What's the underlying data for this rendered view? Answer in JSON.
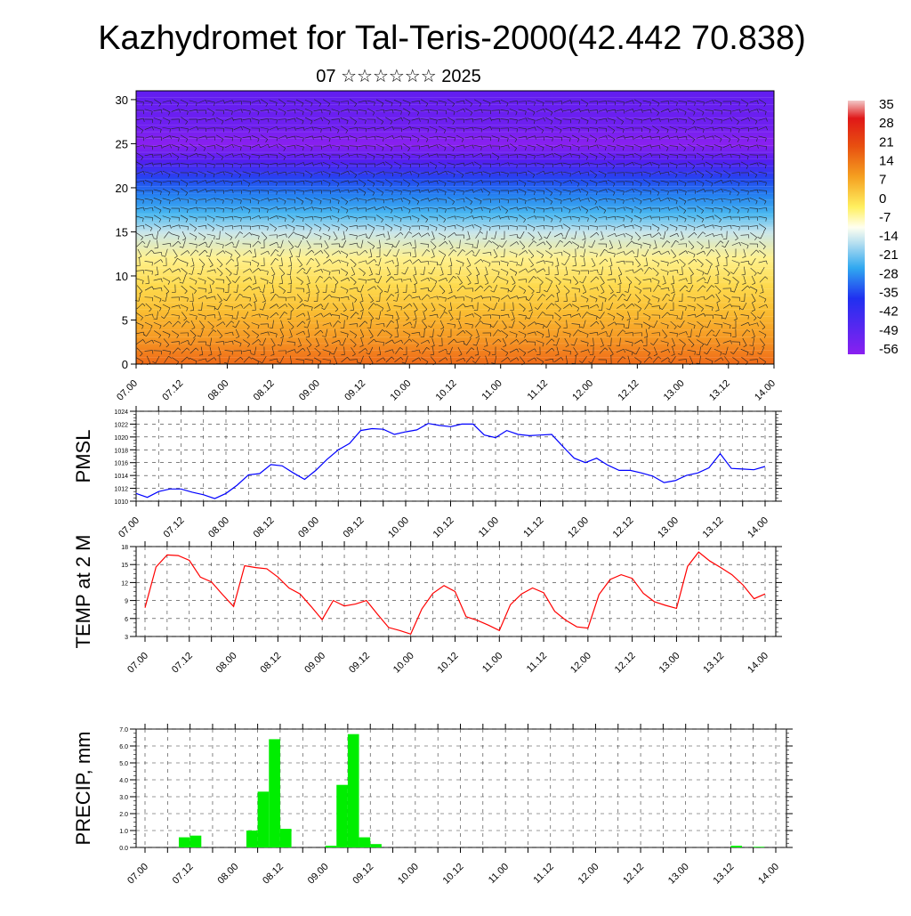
{
  "title": "Kazhydromet for Tal-Teris-2000(42.442 70.838)",
  "subtitle": "07 ☆☆☆☆☆☆ 2025",
  "x_tick_labels": [
    "07.00",
    "07.12",
    "08.00",
    "08.12",
    "09.00",
    "09.12",
    "10.00",
    "10.12",
    "11.00",
    "11.12",
    "12.00",
    "12.12",
    "13.00",
    "13.12",
    "14.00"
  ],
  "colorbar": {
    "labels": [
      "35",
      "28",
      "21",
      "14",
      "7",
      "0",
      "-7",
      "-14",
      "-21",
      "-28",
      "-35",
      "-42",
      "-49",
      "-56"
    ]
  },
  "colors": {
    "pmsl_line": "#0000ff",
    "temp_line": "#ff0000",
    "precip_bar": "#00ee00"
  },
  "chart_data": [
    {
      "type": "heatmap",
      "title": "",
      "ylabel": "",
      "y_ticks": [
        0,
        5,
        10,
        15,
        20,
        25,
        30
      ],
      "ylim": [
        0,
        31
      ],
      "x": [
        "07.00",
        "07.12",
        "08.00",
        "08.12",
        "09.00",
        "09.12",
        "10.00",
        "10.12",
        "11.00",
        "11.12",
        "12.00",
        "12.12",
        "13.00",
        "13.12",
        "14.00"
      ],
      "temperature_profile": [
        {
          "level": 0,
          "value": 18
        },
        {
          "level": 3,
          "value": 12
        },
        {
          "level": 6,
          "value": 7
        },
        {
          "level": 9,
          "value": 2
        },
        {
          "level": 12,
          "value": -4
        },
        {
          "level": 15,
          "value": -13
        },
        {
          "level": 17,
          "value": -22
        },
        {
          "level": 19,
          "value": -30
        },
        {
          "level": 21,
          "value": -38
        },
        {
          "level": 23,
          "value": -48
        },
        {
          "level": 25,
          "value": -56
        },
        {
          "level": 27,
          "value": -52
        },
        {
          "level": 31,
          "value": -50
        }
      ],
      "colorscale_range": [
        -56,
        35
      ]
    },
    {
      "type": "line",
      "ylabel": "PMSL",
      "ylim": [
        1010,
        1024
      ],
      "y_ticks": [
        1010,
        1012,
        1014,
        1016,
        1018,
        1020,
        1022,
        1024
      ],
      "x_hours": [
        0,
        3,
        6,
        9,
        12,
        15,
        18,
        21,
        24,
        27,
        30,
        33,
        36,
        39,
        42,
        45,
        48,
        51,
        54,
        57,
        60,
        63,
        66,
        69,
        72,
        75,
        78,
        81,
        84,
        87,
        90,
        93,
        96,
        99,
        102,
        105,
        108,
        111,
        114,
        117,
        120,
        123,
        126,
        129,
        132,
        135,
        138,
        141,
        144,
        147,
        150,
        153,
        156,
        159,
        162,
        165,
        168
      ],
      "series": [
        {
          "values": [
            1011.2,
            1010.6,
            1011.5,
            1011.9,
            1011.9,
            1011.4,
            1011.0,
            1010.4,
            1011.2,
            1012.5,
            1014.1,
            1014.3,
            1015.7,
            1015.5,
            1014.4,
            1013.4,
            1014.8,
            1016.5,
            1018.0,
            1019.0,
            1021.0,
            1021.3,
            1021.2,
            1020.4,
            1020.8,
            1021.1,
            1022.1,
            1021.8,
            1021.6,
            1022.0,
            1022.0,
            1020.3,
            1019.9,
            1021.0,
            1020.4,
            1020.2,
            1020.3,
            1020.4,
            1018.5,
            1016.7,
            1016.0,
            1016.7,
            1015.6,
            1014.8,
            1014.8,
            1014.4,
            1013.9,
            1012.9,
            1013.2,
            1014.0,
            1014.4,
            1015.2,
            1017.4,
            1015.1,
            1015.0,
            1014.9,
            1015.4
          ]
        }
      ]
    },
    {
      "type": "line",
      "ylabel": "TEMP at 2 M",
      "ylim": [
        3,
        18
      ],
      "y_ticks": [
        3,
        6,
        9,
        12,
        15,
        18
      ],
      "x_hours": [
        0,
        3,
        6,
        9,
        12,
        15,
        18,
        21,
        24,
        27,
        30,
        33,
        36,
        39,
        42,
        45,
        48,
        51,
        54,
        57,
        60,
        63,
        66,
        69,
        72,
        75,
        78,
        81,
        84,
        87,
        90,
        93,
        96,
        99,
        102,
        105,
        108,
        111,
        114,
        117,
        120,
        123,
        126,
        129,
        132,
        135,
        138,
        141,
        144,
        147,
        150,
        153,
        156,
        159,
        162,
        165,
        168
      ],
      "series": [
        {
          "values": [
            7.8,
            14.6,
            16.6,
            16.5,
            15.7,
            12.9,
            12.1,
            10.0,
            8.0,
            14.8,
            14.5,
            14.3,
            12.9,
            11.1,
            10.1,
            8.0,
            5.8,
            9.0,
            8.1,
            8.4,
            9.0,
            6.7,
            4.5,
            4.0,
            3.4,
            7.6,
            10.2,
            11.5,
            10.5,
            6.3,
            5.7,
            4.9,
            4.0,
            8.3,
            10.1,
            11.1,
            10.3,
            7.2,
            5.7,
            4.6,
            4.4,
            10.0,
            12.5,
            13.3,
            12.7,
            10.2,
            8.8,
            8.2,
            7.7,
            14.7,
            17.1,
            15.6,
            14.5,
            13.3,
            11.6,
            9.3,
            10.1
          ]
        }
      ]
    },
    {
      "type": "bar",
      "ylabel": "PRECIP, mm",
      "ylim": [
        0,
        7
      ],
      "y_ticks": [
        "0.0",
        "1.0",
        "2.0",
        "3.0",
        "4.0",
        "5.0",
        "6.0",
        "7.0"
      ],
      "x_hours": [
        0,
        3,
        6,
        9,
        12,
        15,
        18,
        21,
        24,
        27,
        30,
        33,
        36,
        39,
        42,
        45,
        48,
        51,
        54,
        57,
        60,
        63,
        66,
        69,
        72,
        75,
        78,
        81,
        84,
        87,
        90,
        93,
        96,
        99,
        102,
        105,
        108,
        111,
        114,
        117,
        120,
        123,
        126,
        129,
        132,
        135,
        138,
        141,
        144,
        147,
        150,
        153,
        156,
        159,
        162,
        165
      ],
      "series": [
        {
          "values": [
            0,
            0,
            0,
            0.6,
            0.7,
            0,
            0,
            0,
            0,
            1.0,
            3.3,
            6.4,
            1.1,
            0,
            0,
            0,
            0.1,
            3.7,
            6.7,
            0.6,
            0.2,
            0,
            0,
            0,
            0,
            0,
            0,
            0,
            0,
            0,
            0,
            0,
            0,
            0,
            0,
            0,
            0,
            0,
            0,
            0,
            0,
            0,
            0,
            0,
            0,
            0,
            0,
            0,
            0,
            0,
            0,
            0,
            0.1,
            0,
            0.04,
            0
          ]
        }
      ]
    }
  ]
}
